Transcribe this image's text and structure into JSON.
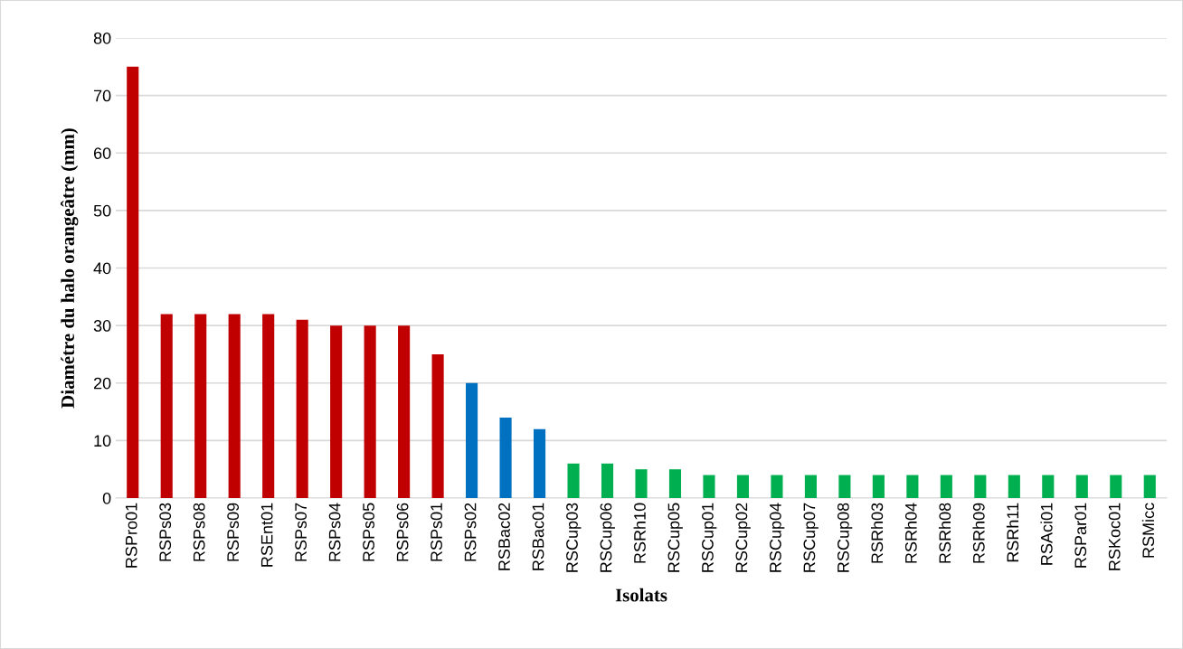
{
  "chart_data": {
    "type": "bar",
    "xlabel": "Isolats",
    "ylabel": "Diamétre du halo orangeâtre (mm)",
    "categories": [
      "RSPro01",
      "RSPs03",
      "RSPs08",
      "RSPs09",
      "RSEnt01",
      "RSPs07",
      "RSPs04",
      "RSPs05",
      "RSPs06",
      "RSPs01",
      "RSPs02",
      "RSBac02",
      "RSBac01",
      "RSCup03",
      "RSCup06",
      "RSRh10",
      "RSCup05",
      "RSCup01",
      "RSCup02",
      "RSCup04",
      "RSCup07",
      "RSCup08",
      "RSRh03",
      "RSRh04",
      "RSRh08",
      "RSRh09",
      "RSRh11",
      "RSAci01",
      "RSPar01",
      "RSKoc01",
      "RSMicc"
    ],
    "values": [
      75,
      32,
      32,
      32,
      32,
      31,
      30,
      30,
      30,
      25,
      20,
      14,
      12,
      6,
      6,
      5,
      5,
      4,
      4,
      4,
      4,
      4,
      4,
      4,
      4,
      4,
      4,
      4,
      4,
      4,
      4
    ],
    "colors": [
      "#c00000",
      "#c00000",
      "#c00000",
      "#c00000",
      "#c00000",
      "#c00000",
      "#c00000",
      "#c00000",
      "#c00000",
      "#c00000",
      "#0070c0",
      "#0070c0",
      "#0070c0",
      "#00b050",
      "#00b050",
      "#00b050",
      "#00b050",
      "#00b050",
      "#00b050",
      "#00b050",
      "#00b050",
      "#00b050",
      "#00b050",
      "#00b050",
      "#00b050",
      "#00b050",
      "#00b050",
      "#00b050",
      "#00b050",
      "#00b050",
      "#00b050"
    ],
    "ylim": [
      0,
      80
    ],
    "yticks": [
      0,
      10,
      20,
      30,
      40,
      50,
      60,
      70,
      80
    ],
    "grid": "y"
  }
}
